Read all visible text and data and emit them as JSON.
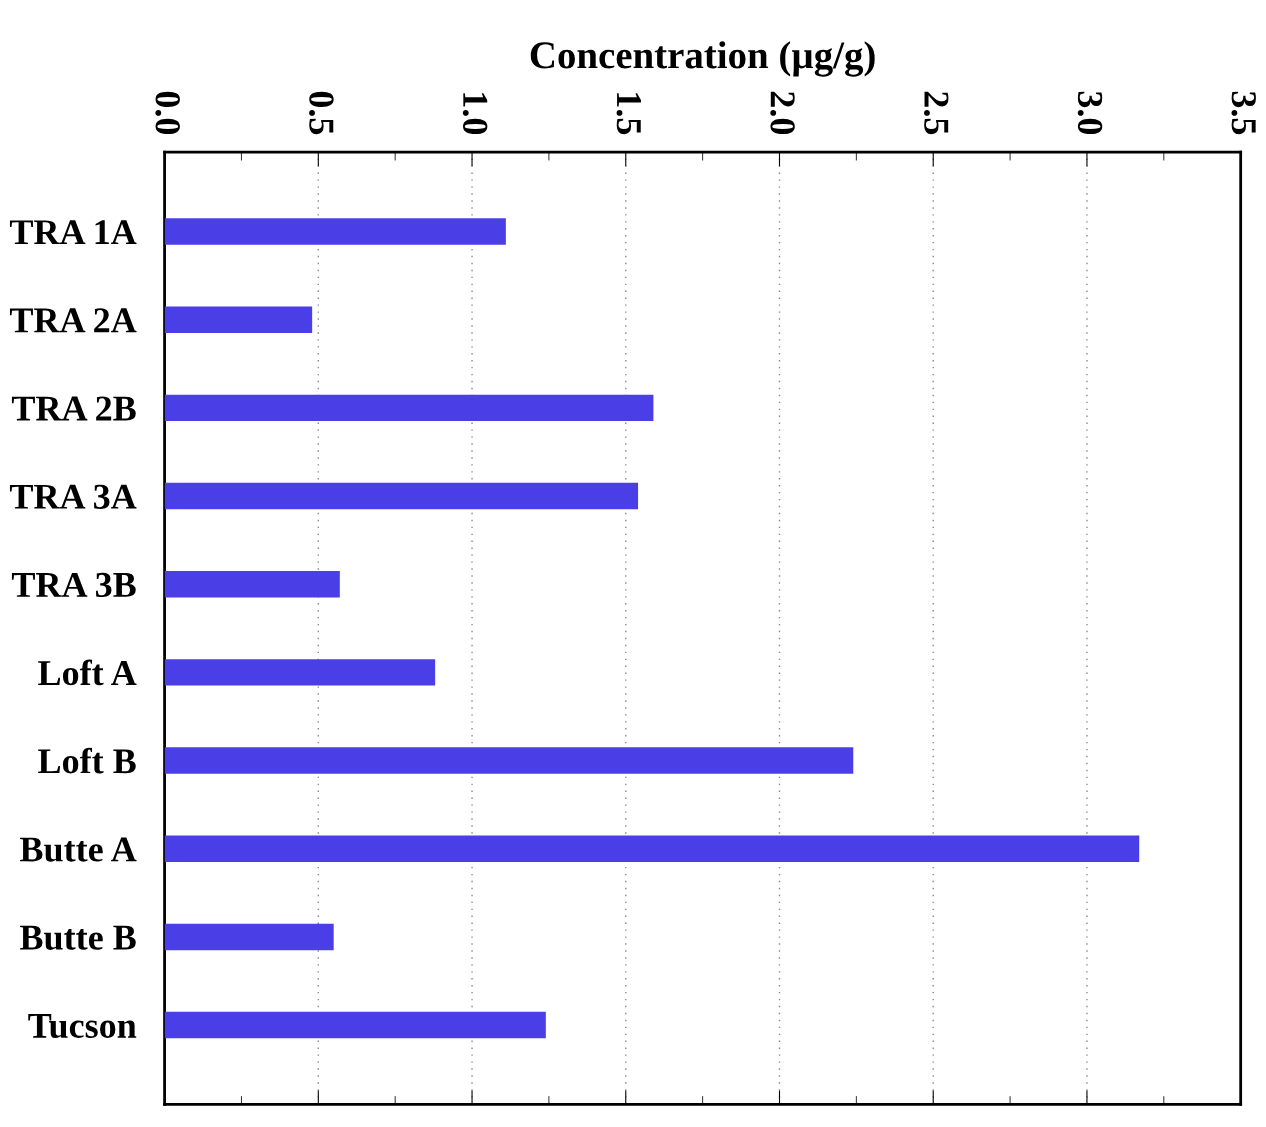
{
  "chart_data": {
    "type": "bar",
    "orientation": "horizontal",
    "xlabel": "Concentration (µg/g)",
    "categories": [
      "TRA 1A",
      "TRA 2A",
      "TRA 2B",
      "TRA 3A",
      "TRA 3B",
      "Loft A",
      "Loft B",
      "Butte A",
      "Butte B",
      "Tucson"
    ],
    "values": [
      1.11,
      0.48,
      1.59,
      1.54,
      0.57,
      0.88,
      2.24,
      3.17,
      0.55,
      1.24
    ],
    "color": "#4a3fe6",
    "xlim": [
      0.0,
      3.5
    ],
    "xticks": [
      {
        "value": 0,
        "label": "0.0"
      },
      {
        "value": 0.5,
        "label": "0.5"
      },
      {
        "value": 1.0,
        "label": "1.0"
      },
      {
        "value": 1.5,
        "label": "1.5"
      },
      {
        "value": 2.0,
        "label": "2.0"
      },
      {
        "value": 2.5,
        "label": "2.5"
      },
      {
        "value": 3.0,
        "label": "3.0"
      },
      {
        "value": 3.5,
        "label": "3.5"
      }
    ],
    "grid": "x",
    "legend": false
  }
}
